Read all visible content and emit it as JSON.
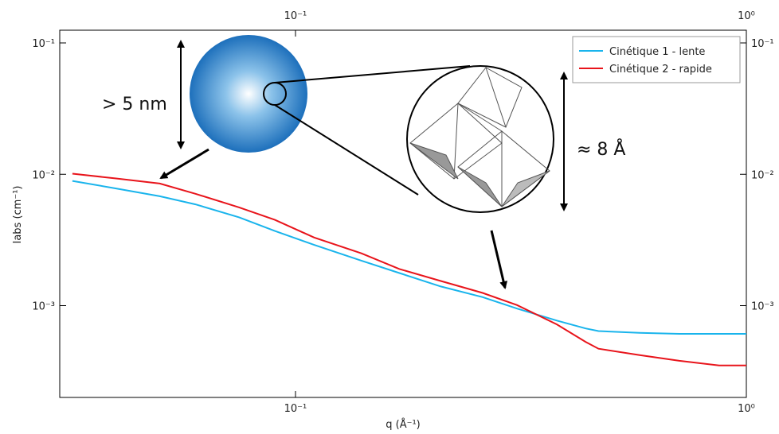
{
  "chart_data": {
    "type": "line",
    "x_label": "q (Å⁻¹)",
    "y_label": "Iabs (cm⁻¹)",
    "x": [
      0.032,
      0.04,
      0.05,
      0.06,
      0.075,
      0.09,
      0.11,
      0.14,
      0.17,
      0.21,
      0.26,
      0.31,
      0.38,
      0.44,
      0.47,
      0.58,
      0.71,
      0.87,
      1.0
    ],
    "series": [
      {
        "name": "Cinétique 1 - lente",
        "color": "#19b4ec",
        "values": [
          0.0089,
          0.0078,
          0.0068,
          0.0059,
          0.0047,
          0.0037,
          0.0029,
          0.0022,
          0.00177,
          0.0014,
          0.00116,
          0.00095,
          0.00077,
          0.00067,
          0.00064,
          0.00062,
          0.00061,
          0.00061,
          0.00061
        ]
      },
      {
        "name": "Cinétique 2 - rapide",
        "color": "#e8141b",
        "values": [
          0.0101,
          0.0093,
          0.0085,
          0.0071,
          0.0056,
          0.0045,
          0.0033,
          0.0025,
          0.0019,
          0.00154,
          0.00125,
          0.00101,
          0.00072,
          0.00053,
          0.00047,
          0.00042,
          0.00038,
          0.00035,
          0.00035
        ]
      }
    ],
    "x_log": true,
    "y_log": true,
    "xlim": [
      0.03,
      1
    ],
    "ylim": [
      0.0002,
      0.125
    ],
    "xticks": [
      {
        "value": 0.1,
        "label": "10⁻¹"
      },
      {
        "value": 1,
        "label": "10⁰"
      }
    ],
    "yticks": [
      {
        "value": 0.001,
        "label": "10⁻³"
      },
      {
        "value": 0.01,
        "label": "10⁻²"
      },
      {
        "value": 0.1,
        "label": "10⁻¹"
      }
    ],
    "legend": "upper right",
    "annotations": [
      "> 5 nm",
      "≈ 8 Å"
    ]
  }
}
